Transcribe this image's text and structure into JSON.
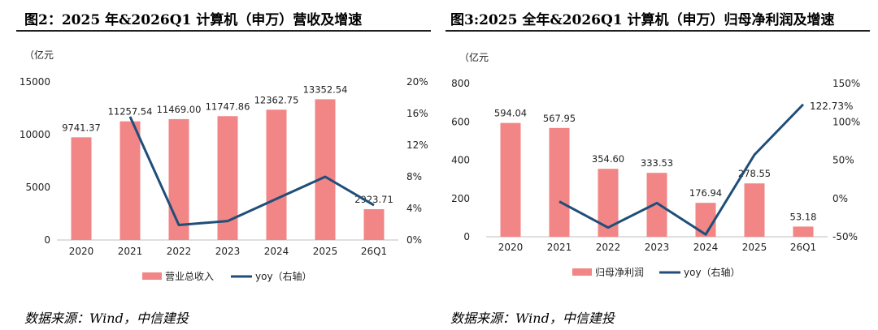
{
  "chart_data": [
    {
      "type": "bar+line",
      "title": "图2：2025 年&2026Q1 计算机（申万）营收及增速",
      "unit_label": "（亿元",
      "categories": [
        "2020",
        "2021",
        "2022",
        "2023",
        "2024",
        "2025",
        "26Q1"
      ],
      "series": [
        {
          "name": "营业总收入",
          "type": "bar",
          "axis": "left",
          "values": [
            9741.37,
            11257.54,
            11469.0,
            11747.86,
            12362.75,
            13352.54,
            2923.71
          ],
          "labels": [
            "9741.37",
            "11257.54",
            "11469.00",
            "11747.86",
            "12362.75",
            "13352.54",
            "2923.71"
          ],
          "color": "#F28585"
        },
        {
          "name": "yoy（右轴）",
          "type": "line",
          "axis": "right",
          "values": [
            null,
            15.6,
            1.9,
            2.4,
            5.2,
            8.0,
            4.4
          ],
          "color": "#1F4E79"
        }
      ],
      "left_axis": {
        "min": 0,
        "max": 15000,
        "ticks": [
          "0",
          "5000",
          "10000",
          "15000"
        ]
      },
      "right_axis": {
        "min": 0,
        "max": 20,
        "ticks": [
          "0%",
          "4%",
          "8%",
          "12%",
          "16%",
          "20%"
        ]
      },
      "legend_position": "bottom",
      "source": "数据来源：Wind，中信建投"
    },
    {
      "type": "bar+line",
      "title": "图3:2025 全年&2026Q1 计算机（申万）归母净利润及增速",
      "unit_label": "（亿元",
      "categories": [
        "2020",
        "2021",
        "2022",
        "2023",
        "2024",
        "2025",
        "26Q1"
      ],
      "series": [
        {
          "name": "归母净利润",
          "type": "bar",
          "axis": "left",
          "values": [
            594.04,
            567.95,
            354.6,
            333.53,
            176.94,
            278.55,
            53.18
          ],
          "labels": [
            "594.04",
            "567.95",
            "354.60",
            "333.53",
            "176.94",
            "278.55",
            "53.18"
          ],
          "color": "#F28585"
        },
        {
          "name": "yoy（右轴）",
          "type": "line",
          "axis": "right",
          "values": [
            null,
            -4,
            -38,
            -6,
            -47,
            57,
            122.73
          ],
          "end_label": "122.73%",
          "color": "#1F4E79"
        }
      ],
      "left_axis": {
        "min": 0,
        "max": 800,
        "ticks": [
          "0",
          "200",
          "400",
          "600",
          "800"
        ]
      },
      "right_axis": {
        "min": -50,
        "max": 150,
        "ticks": [
          "-50%",
          "0%",
          "50%",
          "100%",
          "150%"
        ]
      },
      "legend_position": "bottom",
      "source": "数据来源：Wind，中信建投"
    }
  ]
}
